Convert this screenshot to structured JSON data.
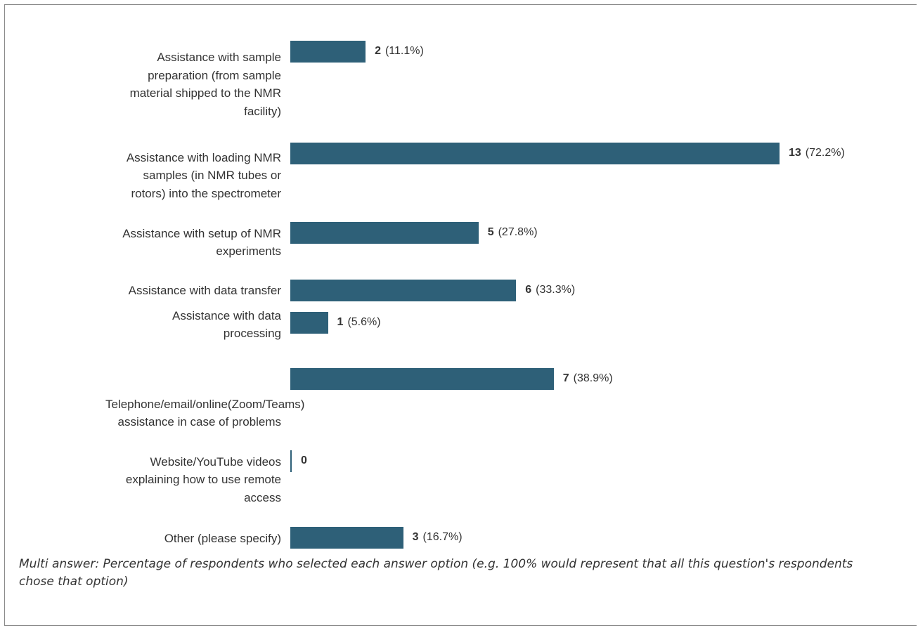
{
  "chart_data": {
    "type": "bar",
    "orientation": "horizontal",
    "categories": [
      "Assistance with sample\npreparation (from sample\nmaterial shipped to the NMR\nfacility)",
      "Assistance with loading NMR\nsamples (in NMR tubes or\nrotors) into the spectrometer",
      "Assistance with setup of NMR\nexperiments",
      "Assistance with data transfer",
      "Assistance with data\nprocessing",
      "Telephone/email/online(Zoom/Teams)\nassistance in case of problems",
      "Website/YouTube videos\nexplaining how to use remote\naccess",
      "Other (please specify)"
    ],
    "values": [
      2,
      13,
      5,
      6,
      1,
      7,
      0,
      3
    ],
    "percentages": [
      "(11.1%)",
      "(72.2%)",
      "(27.8%)",
      "(33.3%)",
      "(5.6%)",
      "(38.9%)",
      "",
      "(16.7%)"
    ],
    "color": "#2e6078",
    "xlim": [
      0,
      18
    ],
    "grid": false,
    "legend": "none"
  },
  "footnote": "Multi answer: Percentage of respondents who selected each answer option (e.g. 100% would represent that all this question's respondents chose that option)"
}
